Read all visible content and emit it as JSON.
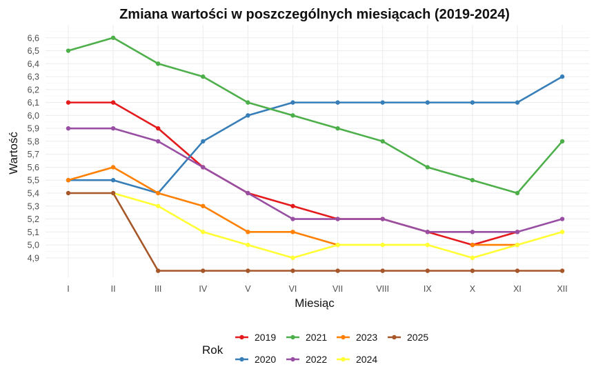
{
  "chart_data": {
    "type": "line",
    "title": "Zmiana wartości w poszczególnych miesiącach (2019-2024)",
    "xlabel": "Miesiąc",
    "ylabel": "Wartość",
    "categories": [
      "I",
      "II",
      "III",
      "IV",
      "V",
      "VI",
      "VII",
      "VIII",
      "IX",
      "X",
      "XI",
      "XII"
    ],
    "yticks": [
      "4,9",
      "5,0",
      "5,1",
      "5,2",
      "5,3",
      "5,4",
      "5,5",
      "5,6",
      "5,7",
      "5,8",
      "5,9",
      "6,0",
      "6,1",
      "6,2",
      "6,3",
      "6,4",
      "6,5",
      "6,6"
    ],
    "ylim": [
      4.75,
      6.7
    ],
    "grid": true,
    "legend": {
      "title": "Rok",
      "placement": "bottom"
    },
    "series": [
      {
        "name": "2019",
        "color": "#e41a1c",
        "values": [
          6.1,
          6.1,
          5.9,
          5.6,
          5.4,
          5.3,
          5.2,
          5.2,
          5.1,
          5.0,
          5.1,
          null
        ]
      },
      {
        "name": "2020",
        "color": "#377eb8",
        "values": [
          5.5,
          5.5,
          5.4,
          5.8,
          6.0,
          6.1,
          6.1,
          6.1,
          6.1,
          6.1,
          6.1,
          6.3
        ]
      },
      {
        "name": "2021",
        "color": "#4daf4a",
        "values": [
          6.5,
          6.6,
          6.4,
          6.3,
          6.1,
          6.0,
          5.9,
          5.8,
          5.6,
          5.5,
          5.4,
          5.8
        ]
      },
      {
        "name": "2022",
        "color": "#984ea3",
        "values": [
          5.9,
          5.9,
          5.8,
          5.6,
          5.4,
          5.2,
          5.2,
          5.2,
          5.1,
          5.1,
          5.1,
          5.2
        ]
      },
      {
        "name": "2023",
        "color": "#ff7f00",
        "values": [
          5.5,
          5.6,
          5.4,
          5.3,
          5.1,
          5.1,
          5.0,
          null,
          null,
          5.0,
          5.0,
          null
        ]
      },
      {
        "name": "2024",
        "color": "#ffff33",
        "values": [
          null,
          5.4,
          5.3,
          5.1,
          5.0,
          4.9,
          5.0,
          5.0,
          5.0,
          4.9,
          5.0,
          5.1
        ]
      },
      {
        "name": "2025",
        "color": "#a65628",
        "values": [
          5.4,
          5.4,
          4.8,
          4.8,
          4.8,
          4.8,
          4.8,
          4.8,
          4.8,
          4.8,
          4.8,
          4.8
        ]
      }
    ]
  }
}
